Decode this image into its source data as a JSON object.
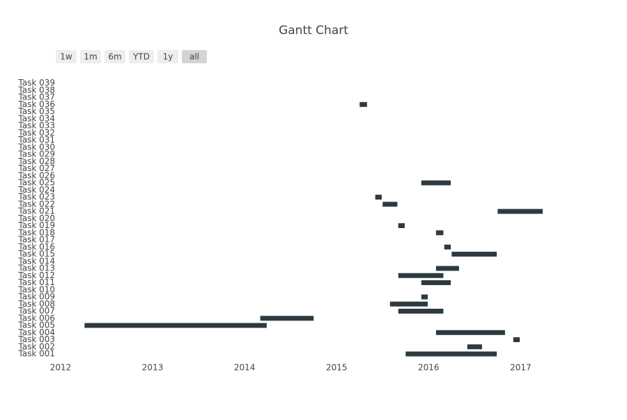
{
  "chart_data": {
    "type": "gantt",
    "title": "Gantt Chart",
    "range_buttons": [
      "1w",
      "1m",
      "6m",
      "YTD",
      "1y",
      "all"
    ],
    "active_button": "all",
    "categories": [
      "Task 001",
      "Task 002",
      "Task 003",
      "Task 004",
      "Task 005",
      "Task 006",
      "Task 007",
      "Task 008",
      "Task 009",
      "Task 010",
      "Task 011",
      "Task 012",
      "Task 013",
      "Task 014",
      "Task 015",
      "Task 016",
      "Task 017",
      "Task 018",
      "Task 019",
      "Task 020",
      "Task 021",
      "Task 022",
      "Task 023",
      "Task 024",
      "Task 025",
      "Task 026",
      "Task 027",
      "Task 028",
      "Task 029",
      "Task 030",
      "Task 031",
      "Task 032",
      "Task 033",
      "Task 034",
      "Task 035",
      "Task 036",
      "Task 037",
      "Task 038",
      "Task 039"
    ],
    "start": [
      2015.75,
      2016.42,
      2016.92,
      2016.08,
      2012.26,
      2014.17,
      2015.67,
      2015.58,
      2015.92,
      null,
      2015.92,
      2015.67,
      2016.08,
      null,
      2016.25,
      2016.17,
      null,
      2016.08,
      2015.67,
      null,
      2016.75,
      2015.5,
      2015.42,
      null,
      2015.92,
      null,
      null,
      null,
      null,
      null,
      null,
      null,
      null,
      null,
      null,
      2015.25,
      null,
      null,
      null
    ],
    "end": [
      2016.74,
      2016.58,
      2016.99,
      2016.83,
      2014.24,
      2014.75,
      2016.16,
      2015.99,
      2015.99,
      null,
      2016.24,
      2016.16,
      2016.33,
      null,
      2016.74,
      2016.24,
      null,
      2016.16,
      2015.74,
      null,
      2017.24,
      2015.66,
      2015.49,
      null,
      2016.24,
      null,
      null,
      null,
      null,
      null,
      null,
      null,
      null,
      null,
      null,
      2015.33,
      null,
      null,
      null
    ],
    "color": "#2e3a40",
    "xlim": [
      2011.947,
      2017.55
    ],
    "xticks": [
      2012,
      2013,
      2014,
      2015,
      2016,
      2017
    ],
    "grid": false
  }
}
